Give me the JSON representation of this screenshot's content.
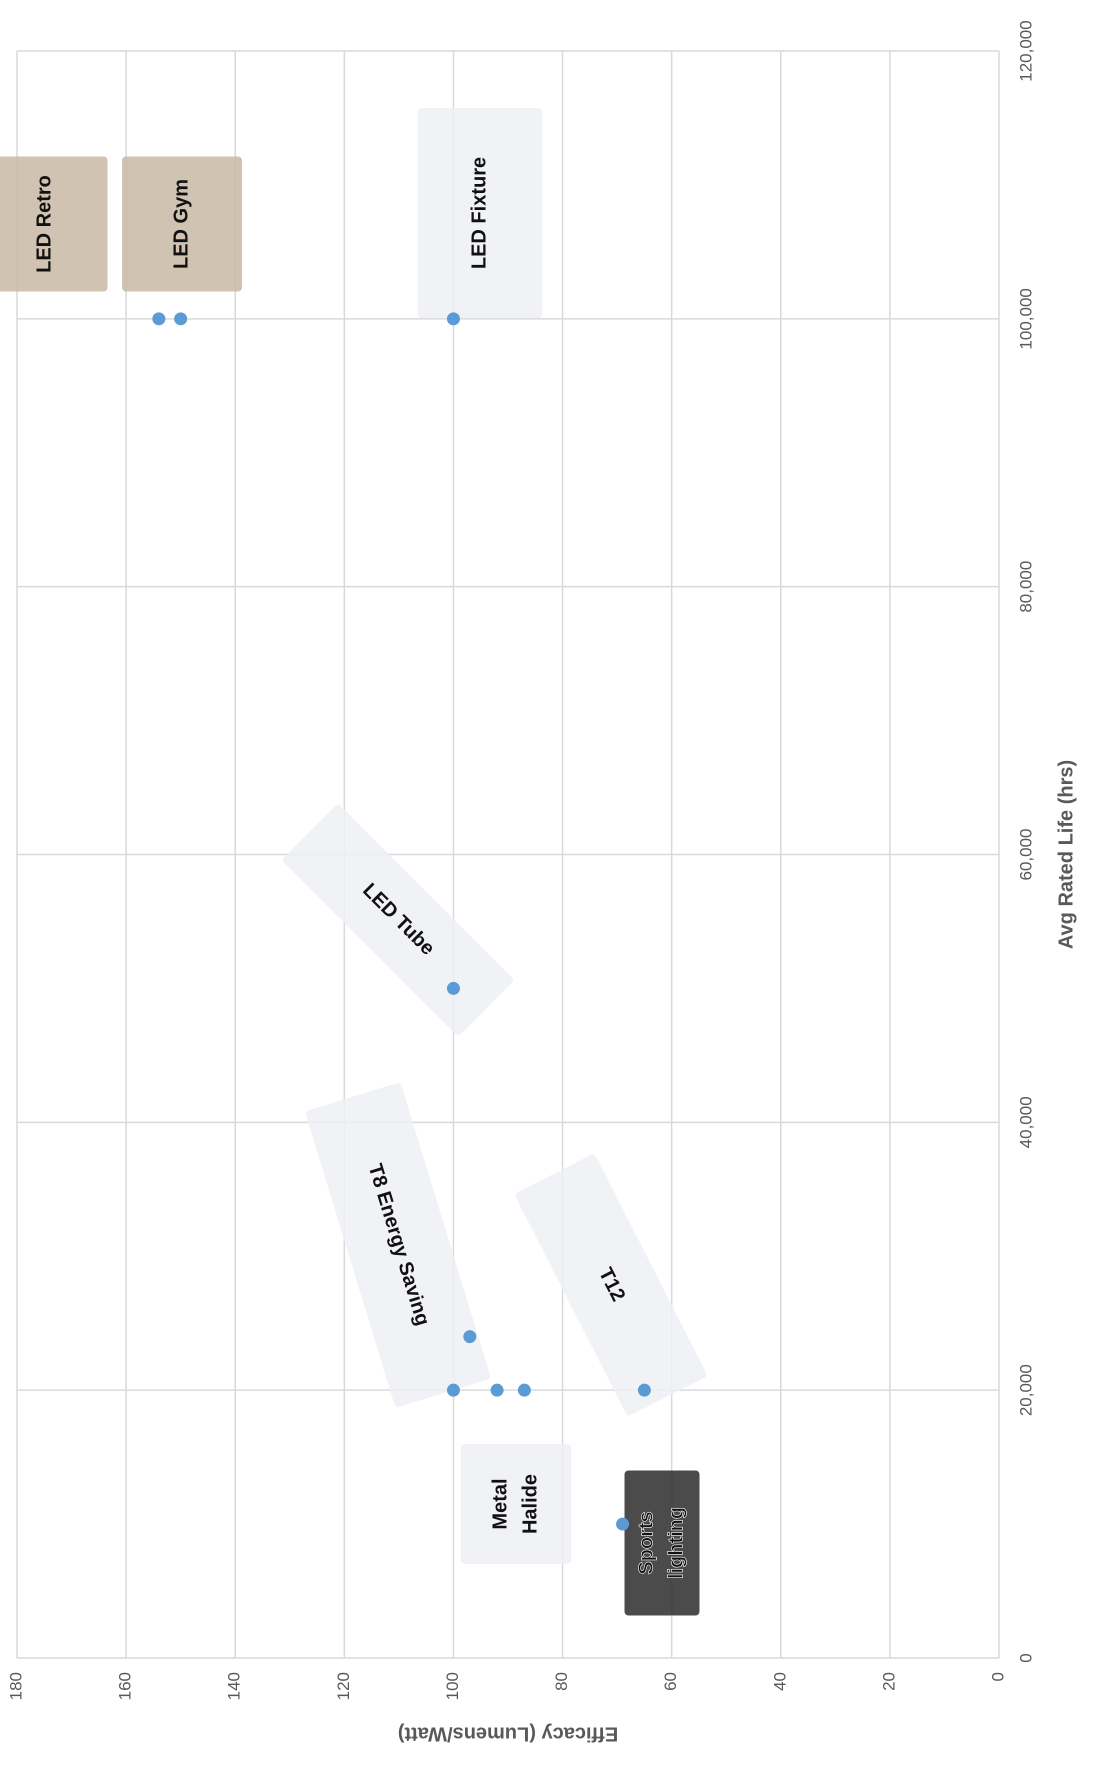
{
  "chart_data": {
    "type": "scatter",
    "x_label": "Avg Rated Life (hrs)",
    "y_label": "Efficacy (Lumens/Watt)",
    "x": [
      100000,
      100000,
      100000,
      50000,
      24000,
      20000,
      20000,
      20000,
      20000,
      10000
    ],
    "values": [
      154,
      150,
      100,
      100,
      97,
      100,
      92,
      87,
      65,
      69
    ],
    "color": "#5b9bd5",
    "xlim": [
      0,
      120000
    ],
    "xticks": [
      {
        "value": 0,
        "label": "0"
      },
      {
        "value": 20000,
        "label": "20,000"
      },
      {
        "value": 40000,
        "label": "40,000"
      },
      {
        "value": 60000,
        "label": "60,000"
      },
      {
        "value": 80000,
        "label": "80,000"
      },
      {
        "value": 100000,
        "label": "100,000"
      },
      {
        "value": 120000,
        "label": "120,000"
      }
    ],
    "ylim": [
      0,
      180
    ],
    "yticks": [
      0,
      20,
      40,
      60,
      80,
      100,
      120,
      140,
      160,
      180
    ],
    "grid": true,
    "annotations": [
      [
        "LED Retro"
      ],
      [
        "LED Gym"
      ],
      [
        "LED Fixture"
      ],
      [
        "LED Tube"
      ],
      [
        "T8 Energy Saving"
      ],
      [
        "T12"
      ],
      [
        "Metal",
        "Halide"
      ],
      [
        "Sports",
        "lighting"
      ]
    ]
  }
}
